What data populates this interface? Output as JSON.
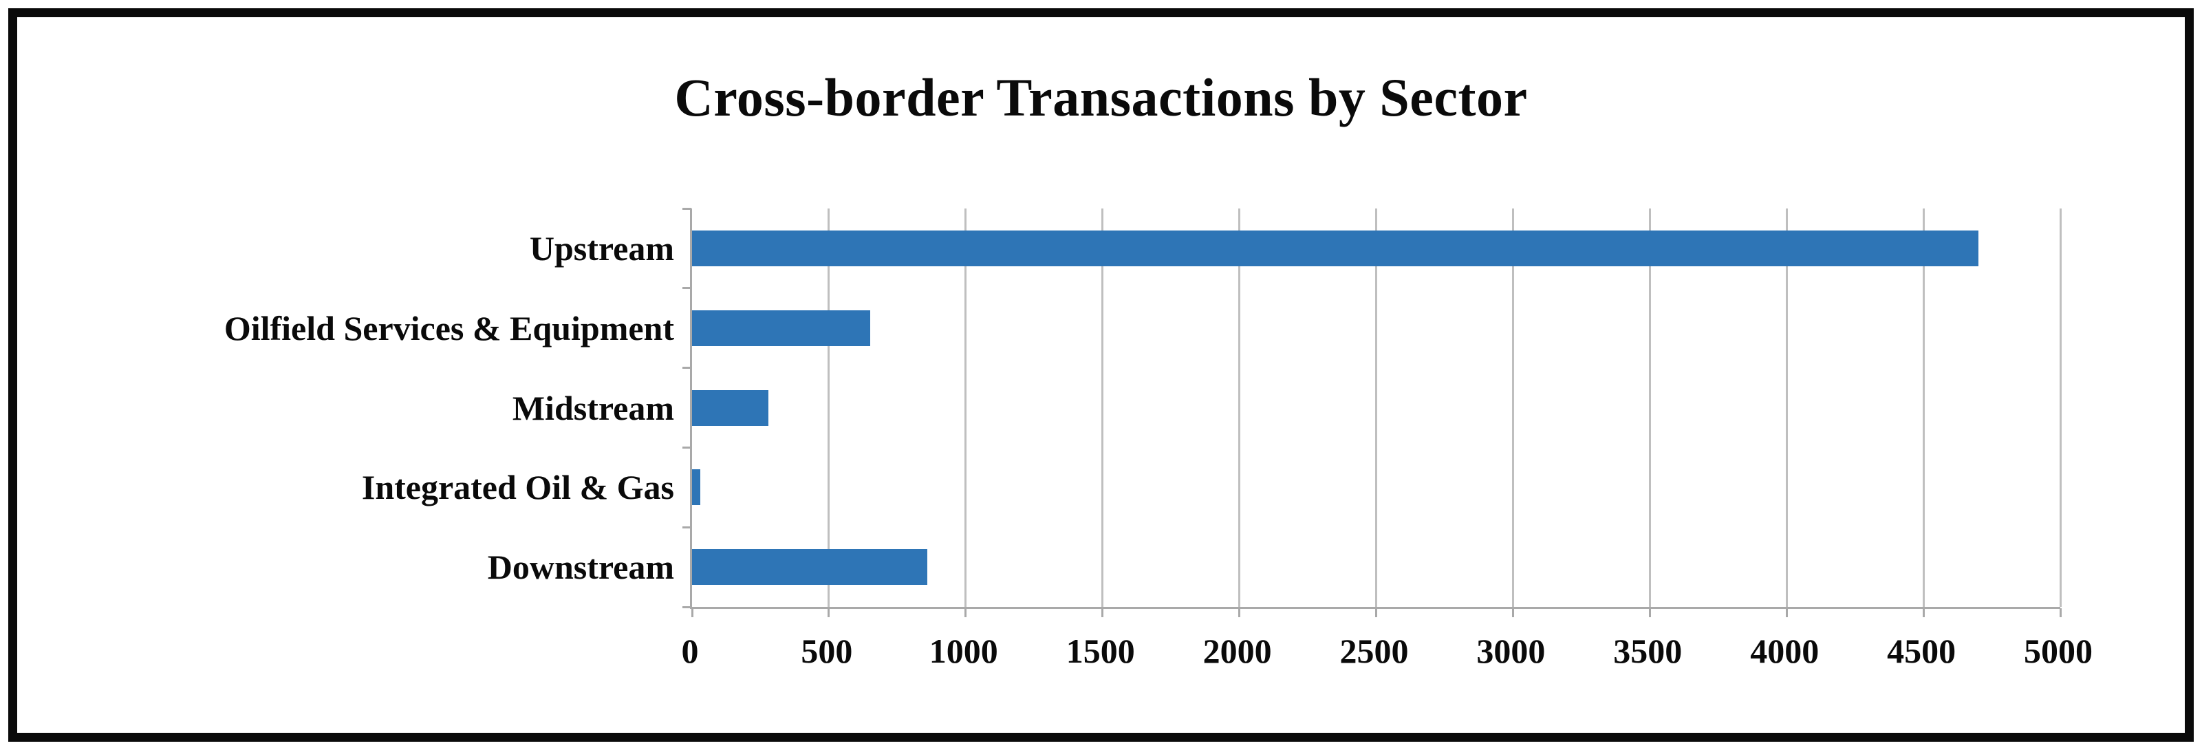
{
  "chart_data": {
    "type": "bar",
    "orientation": "horizontal",
    "title": "Cross-border Transactions by Sector",
    "categories": [
      "Upstream",
      "Oilfield Services & Equipment",
      "Midstream",
      "Integrated Oil & Gas",
      "Downstream"
    ],
    "values": [
      4700,
      650,
      280,
      30,
      860
    ],
    "xlabel": "",
    "ylabel": "",
    "xlim": [
      0,
      5000
    ],
    "xticks": [
      0,
      500,
      1000,
      1500,
      2000,
      2500,
      3000,
      3500,
      4000,
      4500,
      5000
    ],
    "grid": true,
    "legend": "none",
    "bar_color": "#2e75b6",
    "gridline_color": "#bfbfbf",
    "axis_color": "#a9a9a9",
    "frame_border_color": "#0a0a0a",
    "text_color": "#0a0a0a"
  }
}
